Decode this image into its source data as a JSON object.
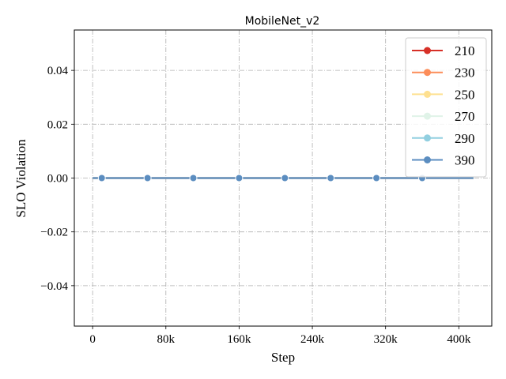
{
  "chart_data": {
    "type": "line",
    "title": "MobileNet_v2",
    "xlabel": "Step",
    "ylabel": "SLO Violation",
    "xlim": [
      -20000,
      436000
    ],
    "ylim": [
      -0.055,
      0.055
    ],
    "x_ticks": [
      0,
      80000,
      160000,
      240000,
      320000,
      400000
    ],
    "x_tick_labels": [
      "0",
      "80k",
      "160k",
      "240k",
      "320k",
      "400k"
    ],
    "y_ticks": [
      -0.04,
      -0.02,
      0.0,
      0.02,
      0.04
    ],
    "y_tick_labels": [
      "−0.04",
      "−0.02",
      "0.00",
      "0.02",
      "0.04"
    ],
    "grid": true,
    "legend_position": "top-right",
    "x": [
      0,
      10000,
      60000,
      110000,
      160000,
      210000,
      260000,
      310000,
      360000,
      416000
    ],
    "marker_x": [
      10000,
      60000,
      110000,
      160000,
      210000,
      260000,
      310000,
      360000
    ],
    "series": [
      {
        "name": "210",
        "color": "#d73027",
        "values": [
          0,
          0,
          0,
          0,
          0,
          0,
          0,
          0,
          0,
          0
        ]
      },
      {
        "name": "230",
        "color": "#fc8d59",
        "values": [
          0,
          0,
          0,
          0,
          0,
          0,
          0,
          0,
          0,
          0
        ]
      },
      {
        "name": "250",
        "color": "#fee090",
        "values": [
          0,
          0,
          0,
          0,
          0,
          0,
          0,
          0,
          0,
          0
        ]
      },
      {
        "name": "270",
        "color": "#e0f3e8",
        "values": [
          0,
          0,
          0,
          0,
          0,
          0,
          0,
          0,
          0,
          0
        ]
      },
      {
        "name": "290",
        "color": "#91cfe0",
        "values": [
          0,
          0,
          0,
          0,
          0,
          0,
          0,
          0,
          0,
          0
        ]
      },
      {
        "name": "390",
        "color": "#5b8dc0",
        "values": [
          0,
          0,
          0,
          0,
          0,
          0,
          0,
          0,
          0,
          0
        ]
      }
    ]
  }
}
